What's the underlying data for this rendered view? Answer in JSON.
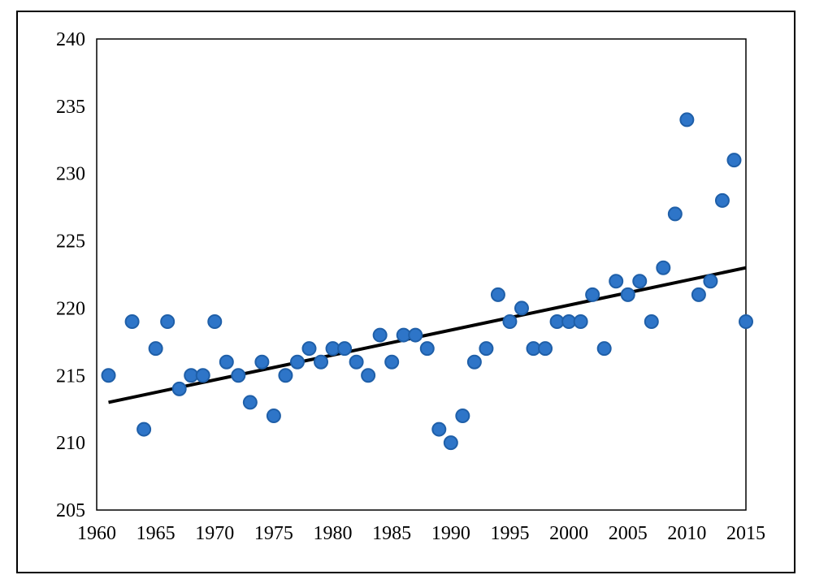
{
  "chart_data": {
    "type": "scatter",
    "title": "",
    "xlabel": "",
    "ylabel": "",
    "xlim": [
      1960,
      2015
    ],
    "ylim": [
      205,
      240
    ],
    "xticks": [
      1960,
      1965,
      1970,
      1975,
      1980,
      1985,
      1990,
      1995,
      2000,
      2005,
      2010,
      2015
    ],
    "yticks": [
      205,
      210,
      215,
      220,
      225,
      230,
      235,
      240
    ],
    "grid": false,
    "legend": "none",
    "series": [
      {
        "marker_color": "#2e75c8",
        "marker_edge_color": "#1f5fa8",
        "points": [
          [
            1961,
            215
          ],
          [
            1963,
            219
          ],
          [
            1964,
            211
          ],
          [
            1965,
            217
          ],
          [
            1966,
            219
          ],
          [
            1967,
            214
          ],
          [
            1968,
            215
          ],
          [
            1969,
            215
          ],
          [
            1970,
            219
          ],
          [
            1971,
            216
          ],
          [
            1972,
            215
          ],
          [
            1973,
            213
          ],
          [
            1974,
            216
          ],
          [
            1975,
            212
          ],
          [
            1976,
            215
          ],
          [
            1977,
            216
          ],
          [
            1978,
            217
          ],
          [
            1979,
            216
          ],
          [
            1980,
            217
          ],
          [
            1981,
            217
          ],
          [
            1982,
            216
          ],
          [
            1983,
            215
          ],
          [
            1984,
            218
          ],
          [
            1985,
            216
          ],
          [
            1986,
            218
          ],
          [
            1987,
            218
          ],
          [
            1988,
            217
          ],
          [
            1989,
            211
          ],
          [
            1990,
            210
          ],
          [
            1991,
            212
          ],
          [
            1992,
            216
          ],
          [
            1993,
            217
          ],
          [
            1994,
            221
          ],
          [
            1995,
            219
          ],
          [
            1996,
            220
          ],
          [
            1997,
            217
          ],
          [
            1998,
            217
          ],
          [
            1999,
            219
          ],
          [
            2000,
            219
          ],
          [
            2001,
            219
          ],
          [
            2002,
            221
          ],
          [
            2003,
            217
          ],
          [
            2004,
            222
          ],
          [
            2005,
            221
          ],
          [
            2006,
            222
          ],
          [
            2007,
            219
          ],
          [
            2008,
            223
          ],
          [
            2009,
            227
          ],
          [
            2010,
            234
          ],
          [
            2011,
            221
          ],
          [
            2012,
            222
          ],
          [
            2013,
            228
          ],
          [
            2014,
            231
          ],
          [
            2015,
            219
          ]
        ]
      }
    ],
    "trendline": {
      "type": "linear",
      "color": "#000000",
      "points": [
        [
          1961,
          213
        ],
        [
          2015,
          223
        ]
      ]
    }
  }
}
